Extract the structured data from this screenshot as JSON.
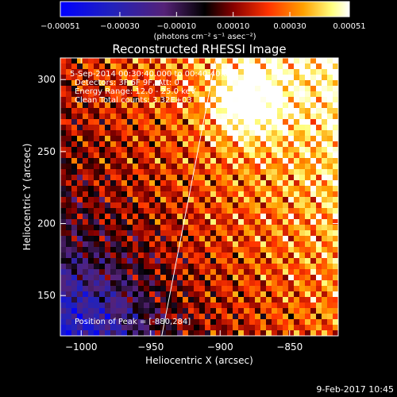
{
  "chart_data": {
    "type": "heatmap",
    "title": "Reconstructed RHESSI Image",
    "xlabel": "Heliocentric X (arcsec)",
    "ylabel": "Heliocentric Y (arcsec)",
    "xlim": [
      -1015,
      -815
    ],
    "ylim": [
      122,
      315
    ],
    "xticks": [
      -1000,
      -950,
      -900,
      -850
    ],
    "yticks": [
      150,
      200,
      250,
      300
    ],
    "xtick_labels": [
      "−1000",
      "−950",
      "−900",
      "−850"
    ],
    "ytick_labels": [
      "150",
      "200",
      "250",
      "300"
    ],
    "colorbar": {
      "range": [
        -0.00051,
        0.00051
      ],
      "ticks": [
        -0.00051,
        -0.0003,
        -0.0001,
        0.0001,
        0.0003,
        0.00051
      ],
      "tick_labels": [
        "−0.00051",
        "−0.00030",
        "−0.00010",
        "0.00010",
        "0.00030",
        "0.00051"
      ],
      "unit_label": "(photons cm⁻² s⁻¹ asec⁻²)",
      "colors": [
        "#0000ff",
        "#1a1acc",
        "#55227a",
        "#000000",
        "#7a0000",
        "#ff4400",
        "#ffa000",
        "#ffff80",
        "#ffffff"
      ]
    },
    "annotations": [
      "5-Sep-2014 00:30:40.000 to 00:40:40.000",
      "Detectors: 3F 6F 9F, Att: 0",
      "Energy Range: 12.0 - 25.0 keV",
      "Clean     Total counts: 3.32E+03"
    ],
    "peak_text": "Position of Peak = [-880,284]",
    "peak": [
      -880,
      284
    ],
    "limb_line": [
      [
        -942,
        122
      ],
      [
        -903,
        315
      ]
    ],
    "grid": false
  },
  "footer": {
    "timestamp": "9-Feb-2017 10:45"
  }
}
